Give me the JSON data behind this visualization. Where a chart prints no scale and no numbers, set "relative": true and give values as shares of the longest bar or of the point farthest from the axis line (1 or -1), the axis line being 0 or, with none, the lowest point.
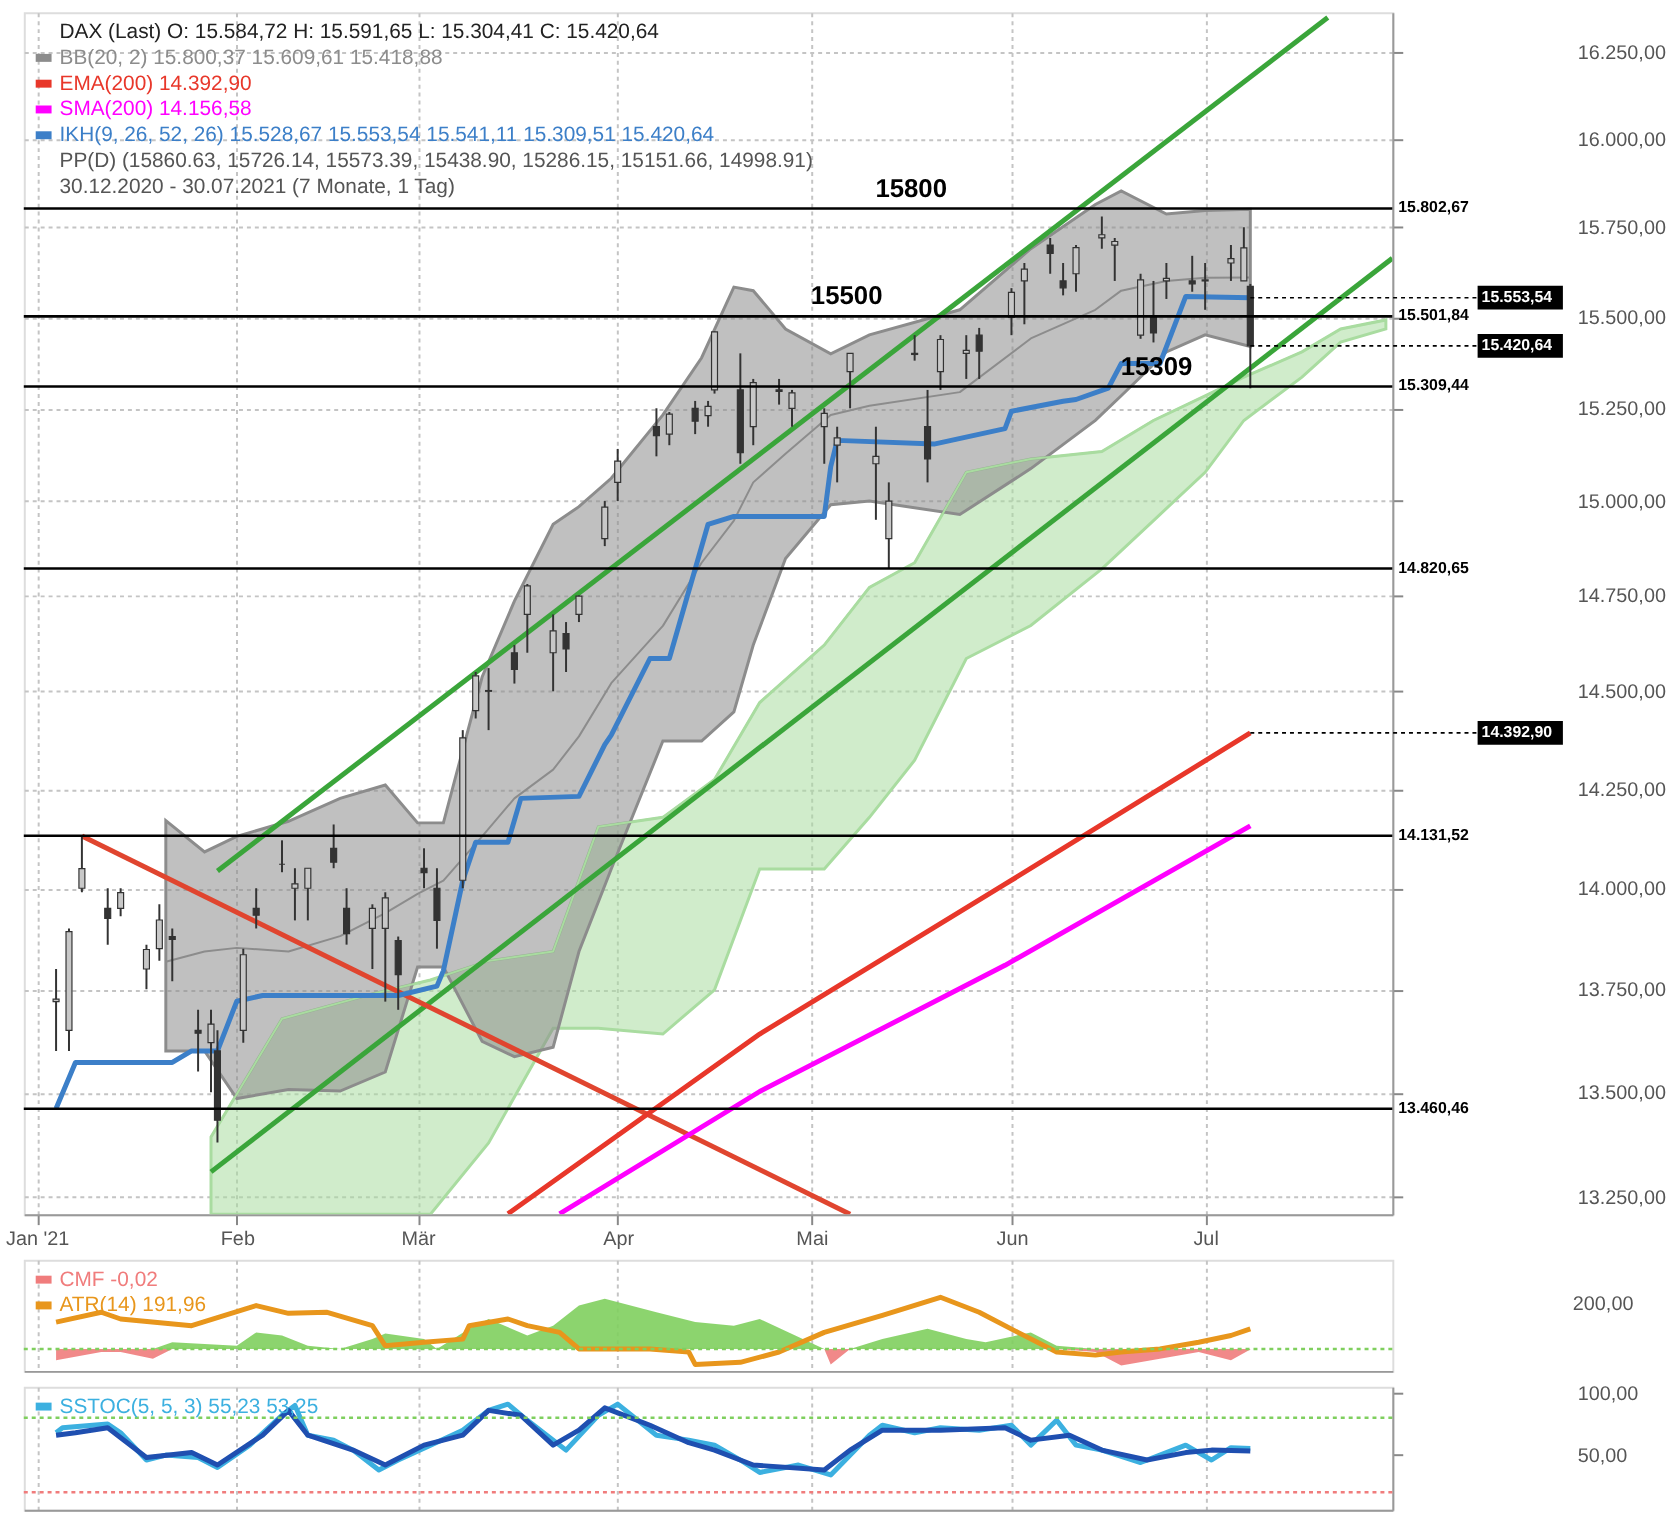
{
  "chart_data": [
    {
      "type": "candlestick",
      "title": "DAX (Last) O: 15.584,72 H: 15.591,65 L: 15.304,41 C: 15.420,64",
      "log": true,
      "grid": true,
      "legend": "top left",
      "xlim": [
        "2020-12-30",
        "2021-07-30"
      ],
      "xticks": [
        {
          "value": "2021-01-01",
          "label": "Jan '21"
        },
        {
          "value": "2021-02-01",
          "label": "Feb"
        },
        {
          "value": "2021-03-01",
          "label": "Mär"
        },
        {
          "value": "2021-04-01",
          "label": "Apr"
        },
        {
          "value": "2021-05-01",
          "label": "Mai"
        },
        {
          "value": "2021-06-01",
          "label": "Jun"
        },
        {
          "value": "2021-07-01",
          "label": "Jul"
        }
      ],
      "ylim": [
        13210,
        16365
      ],
      "yticks": [
        {
          "value": 13250,
          "label": "13.250,00"
        },
        {
          "value": 13500,
          "label": "13.500,00"
        },
        {
          "value": 13750,
          "label": "13.750,00"
        },
        {
          "value": 14000,
          "label": "14.000,00"
        },
        {
          "value": 14250,
          "label": "14.250,00"
        },
        {
          "value": 14500,
          "label": "14.500,00"
        },
        {
          "value": 14750,
          "label": "14.750,00"
        },
        {
          "value": 15000,
          "label": "15.000,00"
        },
        {
          "value": 15250,
          "label": "15.250,00"
        },
        {
          "value": 15500,
          "label": "15.500,00"
        },
        {
          "value": 15750,
          "label": "15.750,00"
        },
        {
          "value": 16000,
          "label": "16.000,00"
        },
        {
          "value": 16250,
          "label": "16.250,00"
        }
      ],
      "series": [
        {
          "type": "line",
          "color": "#a9dca0",
          "x": [
            "2021-01-28",
            "2021-02-08",
            "2021-02-22",
            "2021-03-03",
            "2021-03-12",
            "2021-03-22",
            "2021-03-29",
            "2021-04-08",
            "2021-04-16",
            "2021-04-23",
            "2021-05-03",
            "2021-05-10",
            "2021-05-17",
            "2021-05-25",
            "2021-06-04",
            "2021-06-15",
            "2021-06-23",
            "2021-07-01",
            "2021-07-07",
            "2021-07-16",
            "2021-07-22",
            "2021-07-29"
          ],
          "values": [
            13393,
            13678,
            13739,
            13773,
            13820,
            13843,
            14154,
            14178,
            14274,
            14471,
            14620,
            14771,
            14836,
            15077,
            15113,
            15133,
            15217,
            15284,
            15335,
            15404,
            15467,
            15492
          ],
          "upper": [
            13393,
            13678,
            13739,
            13773,
            13820,
            13843,
            14154,
            14178,
            14274,
            14471,
            14620,
            14771,
            14836,
            15077,
            15113,
            15133,
            15217,
            15284,
            15335,
            15404,
            15467,
            15492
          ],
          "lower": [
            13210,
            13210,
            13210,
            13210,
            13379,
            13655,
            13655,
            13641,
            13749,
            14048,
            14048,
            14178,
            14323,
            14585,
            14671,
            14820,
            14948,
            15077,
            15217,
            15335,
            15431,
            15467
          ]
        },
        {
          "type": "line",
          "name": "BB(20, 2) 15.800,37 15.609,61 15.418,88",
          "color": "#8c8c8c",
          "x": [
            "2021-01-21",
            "2021-01-27",
            "2021-02-01",
            "2021-02-09",
            "2021-02-17",
            "2021-02-24",
            "2021-03-01",
            "2021-03-05",
            "2021-03-11",
            "2021-03-16",
            "2021-03-22",
            "2021-03-26",
            "2021-03-31",
            "2021-04-08",
            "2021-04-14",
            "2021-04-19",
            "2021-04-22",
            "2021-04-27",
            "2021-05-04",
            "2021-05-10",
            "2021-05-24",
            "2021-06-04",
            "2021-06-14",
            "2021-06-18",
            "2021-06-25",
            "2021-07-01",
            "2021-07-08"
          ],
          "values": [
            13818,
            13843,
            13852,
            13843,
            13881,
            13938,
            13986,
            14019,
            14130,
            14226,
            14299,
            14384,
            14521,
            14670,
            14836,
            14948,
            15050,
            15127,
            15232,
            15257,
            15294,
            15441,
            15520,
            15573,
            15600,
            15609,
            15609.61
          ],
          "lower": [
            13600,
            13600,
            13485,
            13507,
            13503,
            13549,
            13805,
            13805,
            13623,
            13586,
            13609,
            13843,
            14048,
            14372,
            14372,
            14447,
            14620,
            14847,
            14990,
            15000,
            14964,
            15087,
            15217,
            15284,
            15404,
            15451,
            15418.88
          ],
          "upper": [
            14170,
            14091,
            14130,
            14168,
            14226,
            14260,
            14164,
            14164,
            14537,
            14735,
            14938,
            14985,
            15061,
            15232,
            15388,
            15583,
            15573,
            15467,
            15399,
            15451,
            15520,
            15690,
            15814,
            15852,
            15787,
            15797,
            15800.37
          ]
        },
        {
          "type": "line",
          "color": "#3aa53a",
          "x": [
            "2021-01-29",
            "2021-07-20"
          ],
          "values": [
            14043,
            16350
          ]
        },
        {
          "type": "line",
          "color": "#3aa53a",
          "x": [
            "2021-01-28",
            "2021-07-30"
          ],
          "values": [
            13310,
            15663
          ]
        },
        {
          "type": "line",
          "color": "#e0452f",
          "x": [
            "2021-01-08",
            "2021-05-07"
          ],
          "values": [
            14131,
            13210
          ]
        },
        {
          "type": "line",
          "name": "EMA(200) 14.392,90",
          "color": "#e8372a",
          "x": [
            "2021-03-15",
            "2021-04-23",
            "2021-05-31",
            "2021-07-08"
          ],
          "values": [
            13211,
            13641,
            14010,
            14392.9
          ]
        },
        {
          "type": "line",
          "name": "SMA(200) 14.156,58",
          "color": "#ff00ff",
          "x": [
            "2021-03-23",
            "2021-04-23",
            "2021-05-31",
            "2021-07-08"
          ],
          "values": [
            13211,
            13502,
            13809,
            14156.58
          ]
        },
        {
          "type": "line",
          "name": "IKH(9, 26, 52, 26) 15.528,67 15.553,54 15.541,11 15.309,51 15.420,64",
          "color": "#3c7fc8",
          "x": [
            "2021-01-04",
            "2021-01-07",
            "2021-01-22",
            "2021-01-25",
            "2021-01-29",
            "2021-02-01",
            "2021-02-05",
            "2021-02-26",
            "2021-03-04",
            "2021-03-05",
            "2021-03-08",
            "2021-03-10",
            "2021-03-15",
            "2021-03-17",
            "2021-03-26",
            "2021-03-30",
            "2021-03-31",
            "2021-04-06",
            "2021-04-09",
            "2021-04-15",
            "2021-04-19",
            "2021-05-03",
            "2021-05-04",
            "2021-05-05",
            "2021-05-20",
            "2021-05-31",
            "2021-06-01",
            "2021-06-09",
            "2021-06-11",
            "2021-06-16",
            "2021-06-18",
            "2021-06-24",
            "2021-06-28",
            "2021-07-08"
          ],
          "values": [
            13461,
            13572,
            13572,
            13600,
            13600,
            13721,
            13735,
            13735,
            13758,
            13796,
            14019,
            14115,
            14115,
            14226,
            14231,
            14363,
            14387,
            14585,
            14585,
            14938,
            14959,
            14959,
            15092,
            15163,
            15153,
            15195,
            15242,
            15269,
            15274,
            15305,
            15372,
            15372,
            15557,
            15553.54
          ]
        },
        {
          "color": "#333333",
          "x": [
            "2021-01-04",
            "2021-01-06",
            "2021-01-08",
            "2021-01-12",
            "2021-01-14",
            "2021-01-18",
            "2021-01-20",
            "2021-01-22",
            "2021-01-26",
            "2021-01-28",
            "2021-01-29",
            "2021-02-02",
            "2021-02-04",
            "2021-02-08",
            "2021-02-10",
            "2021-02-12",
            "2021-02-16",
            "2021-02-18",
            "2021-02-22",
            "2021-02-24",
            "2021-02-26",
            "2021-03-02",
            "2021-03-04",
            "2021-03-08",
            "2021-03-10",
            "2021-03-12",
            "2021-03-16",
            "2021-03-18",
            "2021-03-22",
            "2021-03-24",
            "2021-03-26",
            "2021-03-30",
            "2021-04-01",
            "2021-04-07",
            "2021-04-09",
            "2021-04-13",
            "2021-04-15",
            "2021-04-16",
            "2021-04-20",
            "2021-04-22",
            "2021-04-26",
            "2021-04-28",
            "2021-05-03",
            "2021-05-05",
            "2021-05-07",
            "2021-05-11",
            "2021-05-13",
            "2021-05-17",
            "2021-05-19",
            "2021-05-21",
            "2021-05-25",
            "2021-05-27",
            "2021-06-01",
            "2021-06-03",
            "2021-06-07",
            "2021-06-09",
            "2021-06-11",
            "2021-06-15",
            "2021-06-17",
            "2021-06-21",
            "2021-06-23",
            "2021-06-25",
            "2021-06-29",
            "2021-07-01",
            "2021-07-05",
            "2021-07-07",
            "2021-07-08"
          ],
          "ohlc": [
            [
              13720,
              13800,
              13600,
              13726
            ],
            [
              13650,
              13900,
              13600,
              13892
            ],
            [
              14000,
              14131,
              13990,
              14049
            ],
            [
              13950,
              14000,
              13860,
              13925
            ],
            [
              13950,
              14000,
              13930,
              13989
            ],
            [
              13800,
              13860,
              13750,
              13848
            ],
            [
              13850,
              13960,
              13820,
              13921
            ],
            [
              13880,
              13900,
              13770,
              13873
            ],
            [
              13650,
              13700,
              13550,
              13643
            ],
            [
              13620,
              13700,
              13500,
              13665
            ],
            [
              13600,
              13650,
              13380,
              13433
            ],
            [
              13650,
              13850,
              13620,
              13835
            ],
            [
              13950,
              14000,
              13900,
              13933
            ],
            [
              14060,
              14120,
              14040,
              14060
            ],
            [
              14000,
              14050,
              13920,
              14011
            ],
            [
              14000,
              14050,
              13920,
              14050
            ],
            [
              14100,
              14160,
              14050,
              14065
            ],
            [
              13950,
              14000,
              13860,
              13887
            ],
            [
              13900,
              13960,
              13800,
              13950
            ],
            [
              13900,
              13990,
              13720,
              13976
            ],
            [
              13870,
              13880,
              13700,
              13786
            ],
            [
              14050,
              14100,
              14000,
              14039
            ],
            [
              14000,
              14050,
              13850,
              13920
            ],
            [
              14020,
              14400,
              14000,
              14380
            ],
            [
              14450,
              14550,
              14430,
              14540
            ],
            [
              14500,
              14560,
              14400,
              14502
            ],
            [
              14600,
              14620,
              14520,
              14557
            ],
            [
              14700,
              14780,
              14600,
              14775
            ],
            [
              14600,
              14700,
              14500,
              14657
            ],
            [
              14650,
              14680,
              14550,
              14610
            ],
            [
              14700,
              14750,
              14680,
              14748
            ],
            [
              14900,
              15000,
              14880,
              14984
            ],
            [
              15050,
              15140,
              15000,
              15107
            ],
            [
              15200,
              15250,
              15120,
              15176
            ],
            [
              15180,
              15240,
              15150,
              15234
            ],
            [
              15250,
              15270,
              15180,
              15215
            ],
            [
              15230,
              15270,
              15200,
              15255
            ],
            [
              15300,
              15460,
              15290,
              15459
            ],
            [
              15300,
              15400,
              15100,
              15130
            ],
            [
              15200,
              15330,
              15150,
              15320
            ],
            [
              15300,
              15330,
              15260,
              15296
            ],
            [
              15250,
              15300,
              15200,
              15292
            ],
            [
              15200,
              15250,
              15100,
              15236
            ],
            [
              15150,
              15200,
              15050,
              15170
            ],
            [
              15350,
              15400,
              15250,
              15400
            ],
            [
              15100,
              15200,
              14950,
              15120
            ],
            [
              14900,
              15050,
              14821,
              15000
            ],
            [
              15400,
              15450,
              15380,
              15397
            ],
            [
              15200,
              15300,
              15050,
              15113
            ],
            [
              15350,
              15450,
              15300,
              15438
            ],
            [
              15400,
              15450,
              15330,
              15408
            ],
            [
              15450,
              15470,
              15330,
              15406
            ],
            [
              15500,
              15580,
              15450,
              15568
            ],
            [
              15600,
              15650,
              15480,
              15633
            ],
            [
              15700,
              15720,
              15620,
              15677
            ],
            [
              15600,
              15650,
              15560,
              15581
            ],
            [
              15620,
              15700,
              15570,
              15693
            ],
            [
              15720,
              15780,
              15690,
              15729
            ],
            [
              15700,
              15720,
              15600,
              15710
            ],
            [
              15450,
              15620,
              15440,
              15603
            ],
            [
              15500,
              15600,
              15430,
              15456
            ],
            [
              15600,
              15650,
              15550,
              15607
            ],
            [
              15600,
              15670,
              15570,
              15592
            ],
            [
              15600,
              15650,
              15520,
              15603
            ],
            [
              15650,
              15700,
              15600,
              15662
            ],
            [
              15600,
              15750,
              15600,
              15692
            ],
            [
              15584.72,
              15591.65,
              15304.41,
              15420.64
            ]
          ]
        }
      ],
      "ref_lines": [
        {
          "axis": "y",
          "value": 15802.67,
          "label": "15.802,67",
          "color": "#000000"
        },
        {
          "axis": "y",
          "value": 15501.84,
          "label": "15.501,84",
          "color": "#000000"
        },
        {
          "axis": "y",
          "value": 15309.44,
          "label": "15.309,44",
          "color": "#000000"
        },
        {
          "axis": "y",
          "value": 14820.65,
          "label": "14.820,65",
          "color": "#000000"
        },
        {
          "axis": "y",
          "value": 14131.52,
          "label": "14.131,52",
          "color": "#000000"
        },
        {
          "axis": "y",
          "value": 13460.46,
          "label": "13.460,46",
          "color": "#000000"
        }
      ],
      "annotations": [
        {
          "text": "15800",
          "x": "2021-05-10",
          "y": 15802.67
        },
        {
          "text": "15500",
          "x": "2021-04-30",
          "y": 15501.84
        },
        {
          "text": "15309",
          "x": "2021-06-17",
          "y": 15309.44
        },
        {
          "text": "15.553,54",
          "x": "2021-07-08",
          "y": 15553.54
        },
        {
          "text": "15.420,64",
          "x": "2021-07-08",
          "y": 15420.64
        },
        {
          "text": "14.392,90",
          "x": "2021-07-08",
          "y": 14392.9
        },
        "PP(D) (15860.63, 15726.14, 15573.39, 15438.90, 15286.15, 15151.66, 14998.91)",
        "30.12.2020 - 30.07.2021 (7 Monate, 1 Tag)"
      ]
    },
    {
      "type": "line",
      "relative": true,
      "grid": "x",
      "legend": "top left",
      "tick_labels": false,
      "xlim": [
        "2020-12-30",
        "2021-07-30"
      ],
      "xticks": [
        {
          "value": "2021-01-01",
          "label": null
        },
        {
          "value": "2021-02-01",
          "label": null
        },
        {
          "value": "2021-03-01",
          "label": null
        },
        {
          "value": "2021-04-01",
          "label": null
        },
        {
          "value": "2021-05-01",
          "label": null
        },
        {
          "value": "2021-06-01",
          "label": null
        },
        {
          "value": "2021-07-01",
          "label": null
        }
      ],
      "series": [
        {
          "type": "area",
          "color": "#7fcf5e",
          "x": [
            "2021-01-04",
            "2021-01-11",
            "2021-01-14",
            "2021-01-19",
            "2021-01-22",
            "2021-02-01",
            "2021-02-04",
            "2021-02-08",
            "2021-02-12",
            "2021-02-17",
            "2021-02-22",
            "2021-02-24",
            "2021-03-02",
            "2021-03-04",
            "2021-03-09",
            "2021-03-12",
            "2021-03-18",
            "2021-03-22",
            "2021-03-26",
            "2021-03-30",
            "2021-04-07",
            "2021-04-13",
            "2021-04-19",
            "2021-04-23",
            "2021-05-03",
            "2021-05-04",
            "2021-05-07",
            "2021-05-12",
            "2021-05-19",
            "2021-05-25",
            "2021-05-28",
            "2021-06-04",
            "2021-06-08",
            "2021-06-14",
            "2021-06-18",
            "2021-06-24",
            "2021-06-30",
            "2021-07-05",
            "2021-07-08"
          ],
          "values": [
            0,
            0,
            0,
            0,
            0.13,
            0.06,
            0.32,
            0.26,
            0.06,
            0,
            0.19,
            0.3,
            0.19,
            0,
            0.39,
            0.58,
            0.26,
            0.45,
            0.84,
            0.97,
            0.71,
            0.52,
            0.45,
            0.58,
            0,
            0,
            0,
            0.19,
            0.39,
            0.19,
            0.13,
            0.32,
            0.06,
            0,
            0,
            0,
            0,
            0,
            0
          ]
        },
        {
          "type": "area",
          "name": "CMF -0,02",
          "color": "#f07c7c",
          "x": [
            "2021-01-04",
            "2021-01-11",
            "2021-01-14",
            "2021-01-19",
            "2021-01-22",
            "2021-02-01",
            "2021-02-04",
            "2021-02-08",
            "2021-02-12",
            "2021-02-17",
            "2021-02-22",
            "2021-02-24",
            "2021-03-02",
            "2021-03-04",
            "2021-03-09",
            "2021-03-12",
            "2021-03-18",
            "2021-03-22",
            "2021-03-26",
            "2021-03-30",
            "2021-04-07",
            "2021-04-13",
            "2021-04-19",
            "2021-04-23",
            "2021-05-03",
            "2021-05-04",
            "2021-05-07",
            "2021-05-12",
            "2021-05-19",
            "2021-05-25",
            "2021-05-28",
            "2021-06-04",
            "2021-06-08",
            "2021-06-14",
            "2021-06-18",
            "2021-06-24",
            "2021-06-30",
            "2021-07-05",
            "2021-07-08"
          ],
          "values": [
            -0.22,
            -0.06,
            -0.06,
            -0.19,
            0,
            0,
            0,
            0,
            0,
            0,
            0,
            0,
            0,
            0,
            0,
            0,
            0,
            0,
            0,
            0,
            0,
            0,
            0,
            0,
            0,
            -0.3,
            0,
            0,
            0,
            0,
            0,
            0,
            0,
            -0.06,
            -0.32,
            -0.19,
            -0.06,
            -0.22,
            -0.01
          ]
        },
        {
          "name": "ATR(14) 191,96",
          "color": "#e8961c",
          "x": [
            "2021-01-04",
            "2021-01-11",
            "2021-01-14",
            "2021-01-25",
            "2021-02-04",
            "2021-02-09",
            "2021-02-15",
            "2021-02-22",
            "2021-02-24",
            "2021-03-02",
            "2021-03-08",
            "2021-03-09",
            "2021-03-15",
            "2021-03-18",
            "2021-03-23",
            "2021-03-26",
            "2021-04-06",
            "2021-04-12",
            "2021-04-13",
            "2021-04-20",
            "2021-04-26",
            "2021-05-03",
            "2021-05-12",
            "2021-05-21",
            "2021-05-27",
            "2021-06-02",
            "2021-06-08",
            "2021-06-14",
            "2021-06-18",
            "2021-06-24",
            "2021-06-30",
            "2021-07-05",
            "2021-07-08"
          ],
          "values": [
            0.52,
            0.71,
            0.58,
            0.45,
            0.84,
            0.69,
            0.71,
            0.45,
            0.06,
            0.13,
            0.19,
            0.45,
            0.58,
            0.45,
            0.32,
            0,
            0,
            -0.06,
            -0.3,
            -0.26,
            -0.06,
            0.32,
            0.65,
            1,
            0.71,
            0.32,
            -0.06,
            -0.12,
            -0.06,
            0,
            0.13,
            0.26,
            0.39
          ]
        }
      ],
      "ref_lines": [
        {
          "axis": "y",
          "value": 0,
          "color": "#7fcf5e",
          "line_style": "dotted"
        }
      ],
      "annotations": [
        "200,00"
      ]
    },
    {
      "type": "line",
      "grid": "x",
      "legend": "top left",
      "tick_labels": "y",
      "xlim": [
        "2020-12-30",
        "2021-07-30"
      ],
      "xticks": [
        {
          "value": "2021-01-01",
          "label": null
        },
        {
          "value": "2021-02-01",
          "label": null
        },
        {
          "value": "2021-03-01",
          "label": null
        },
        {
          "value": "2021-04-01",
          "label": null
        },
        {
          "value": "2021-05-01",
          "label": null
        },
        {
          "value": "2021-06-01",
          "label": null
        },
        {
          "value": "2021-07-01",
          "label": null
        }
      ],
      "ylim": [
        6,
        105
      ],
      "yticks": [
        {
          "value": 50,
          "label": "50,00"
        },
        {
          "value": 100,
          "label": "100,00"
        }
      ],
      "series": [
        {
          "name": "SSTOC(5, 5, 3) 55,23 53,25",
          "color": "#3cb0e0",
          "x": [
            "2021-01-04",
            "2021-01-05",
            "2021-01-12",
            "2021-01-14",
            "2021-01-18",
            "2021-01-21",
            "2021-01-26",
            "2021-01-29",
            "2021-02-03",
            "2021-02-08",
            "2021-02-10",
            "2021-02-12",
            "2021-02-16",
            "2021-02-19",
            "2021-02-23",
            "2021-02-26",
            "2021-03-03",
            "2021-03-08",
            "2021-03-12",
            "2021-03-15",
            "2021-03-18",
            "2021-03-24",
            "2021-03-29",
            "2021-04-01",
            "2021-04-07",
            "2021-04-12",
            "2021-04-16",
            "2021-04-20",
            "2021-04-23",
            "2021-04-29",
            "2021-05-04",
            "2021-05-10",
            "2021-05-12",
            "2021-05-17",
            "2021-05-21",
            "2021-05-27",
            "2021-06-01",
            "2021-06-04",
            "2021-06-08",
            "2021-06-11",
            "2021-06-15",
            "2021-06-21",
            "2021-06-24",
            "2021-06-28",
            "2021-07-02",
            "2021-07-05",
            "2021-07-08"
          ],
          "values": [
            68,
            72,
            75,
            68,
            46,
            50,
            48,
            40,
            58,
            82,
            90,
            66,
            62,
            54,
            38,
            46,
            58,
            70,
            86,
            91,
            78,
            54,
            82,
            91,
            66,
            62,
            58,
            46,
            36,
            42,
            34,
            66,
            74,
            68,
            72,
            70,
            74,
            58,
            78,
            58,
            54,
            44,
            50,
            58,
            46,
            56,
            55.23
          ]
        },
        {
          "color": "#1f4fb0",
          "x": [
            "2021-01-04",
            "2021-01-07",
            "2021-01-12",
            "2021-01-18",
            "2021-01-25",
            "2021-01-29",
            "2021-02-05",
            "2021-02-09",
            "2021-02-12",
            "2021-02-19",
            "2021-02-24",
            "2021-03-02",
            "2021-03-08",
            "2021-03-12",
            "2021-03-17",
            "2021-03-22",
            "2021-03-26",
            "2021-03-30",
            "2021-04-06",
            "2021-04-12",
            "2021-04-16",
            "2021-04-22",
            "2021-05-03",
            "2021-05-07",
            "2021-05-12",
            "2021-05-21",
            "2021-05-31",
            "2021-06-04",
            "2021-06-10",
            "2021-06-15",
            "2021-06-22",
            "2021-06-28",
            "2021-07-02",
            "2021-07-08"
          ],
          "values": [
            66,
            68,
            72,
            48,
            52,
            42,
            66,
            86,
            66,
            54,
            42,
            58,
            66,
            86,
            82,
            58,
            70,
            88,
            74,
            60,
            54,
            42,
            38,
            54,
            70,
            70,
            72,
            62,
            66,
            54,
            46,
            52,
            54,
            53.25
          ]
        }
      ],
      "ref_lines": [
        {
          "axis": "y",
          "value": 80,
          "color": "#7fcf5e",
          "line_style": "dotted"
        },
        {
          "axis": "y",
          "value": 20,
          "color": "#f07c7c",
          "line_style": "dotted"
        }
      ]
    }
  ]
}
